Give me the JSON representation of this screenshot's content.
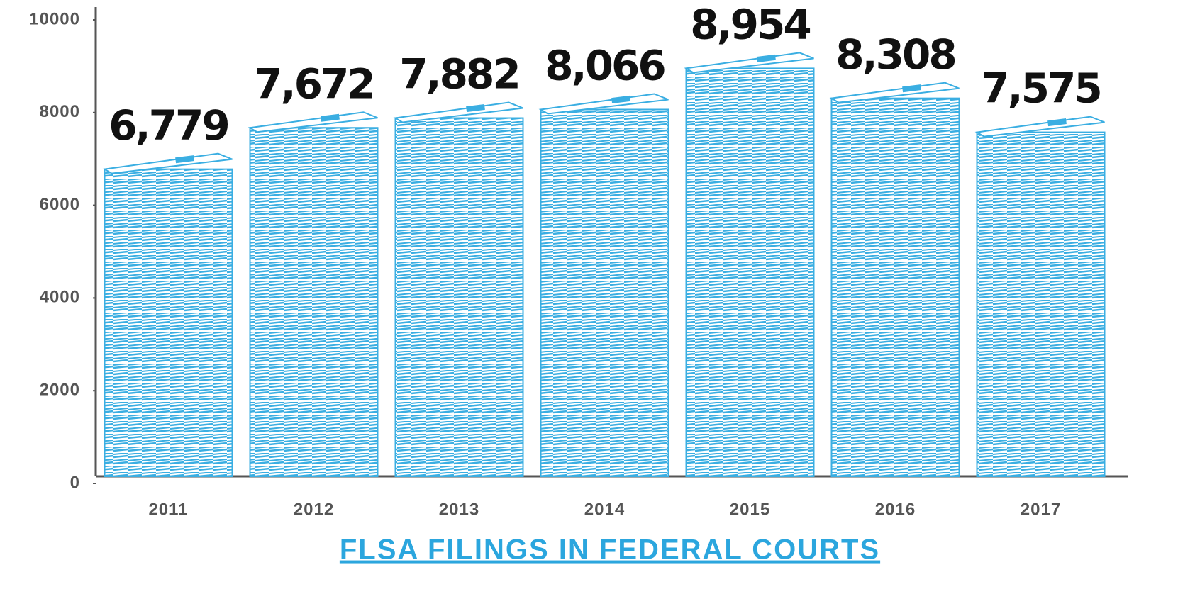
{
  "chart_data": {
    "type": "bar",
    "title": "FLSA FILINGS IN FEDERAL COURTS",
    "categories": [
      "2011",
      "2012",
      "2013",
      "2014",
      "2015",
      "2016",
      "2017"
    ],
    "values": [
      6779,
      7672,
      7882,
      8066,
      8954,
      8308,
      7575
    ],
    "value_labels": [
      "6,779",
      "7,672",
      "7,882",
      "8,066",
      "8,954",
      "8,308",
      "7,575"
    ],
    "color": "#3aaee2",
    "ylim": [
      0,
      10000
    ],
    "yticks": [
      0,
      2000,
      4000,
      6000,
      8000,
      10000
    ],
    "grid": false
  }
}
